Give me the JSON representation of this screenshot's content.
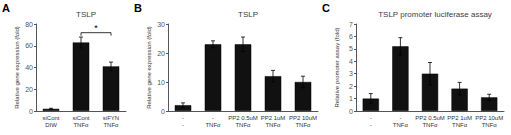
{
  "chart_data": [
    {
      "type": "bar",
      "title": "TSLP",
      "panel_label": "A",
      "categories": [
        "siCont\nDIW",
        "siCont\nTNFα",
        "siFYN\nTNFα"
      ],
      "values": [
        2,
        63,
        41
      ],
      "errors": [
        0.5,
        5,
        4
      ],
      "color": "#111111",
      "ylabel": "Relative gene expression (fold)",
      "ylim": [
        0,
        80
      ],
      "yticks": [
        0,
        20,
        40,
        60,
        80
      ],
      "grid": false,
      "annotations": [
        {
          "text": "*",
          "from": "siCont\nTNFα",
          "to": "siFYN\nTNFα",
          "y": 72
        }
      ]
    },
    {
      "type": "bar",
      "title": "TSLP",
      "panel_label": "B",
      "categories": [
        "-\n-",
        "-\nTNFα",
        "PP2 0.5uM\nTNFα",
        "PP2 1uM\nTNFα",
        "PP2 10uM\nTNFα"
      ],
      "values": [
        2.0,
        23,
        23,
        12,
        10
      ],
      "errors": [
        0.8,
        1.2,
        2.5,
        2.0,
        2.0
      ],
      "color": "#111111",
      "ylabel": "Relative gene expression (fold)",
      "ylim": [
        0,
        30
      ],
      "yticks": [
        0,
        10,
        20,
        30
      ],
      "grid": false
    },
    {
      "type": "bar",
      "title": "TSLP promoter luciferase assay",
      "panel_label": "C",
      "categories": [
        "-\n-",
        "-\nTNFα",
        "PP2 0.5uM\nTNFα",
        "PP2 1uM\nTNFα",
        "PP2 10uM\nTNFα"
      ],
      "values": [
        1.0,
        5.2,
        3.0,
        1.8,
        1.1
      ],
      "errors": [
        0.4,
        0.7,
        0.9,
        0.5,
        0.25
      ],
      "color": "#111111",
      "ylabel": "Relative promoter assay (fold)",
      "ylim": [
        0,
        7
      ],
      "yticks": [
        0,
        1,
        2,
        3,
        4,
        5,
        6,
        7
      ],
      "grid": false
    }
  ]
}
